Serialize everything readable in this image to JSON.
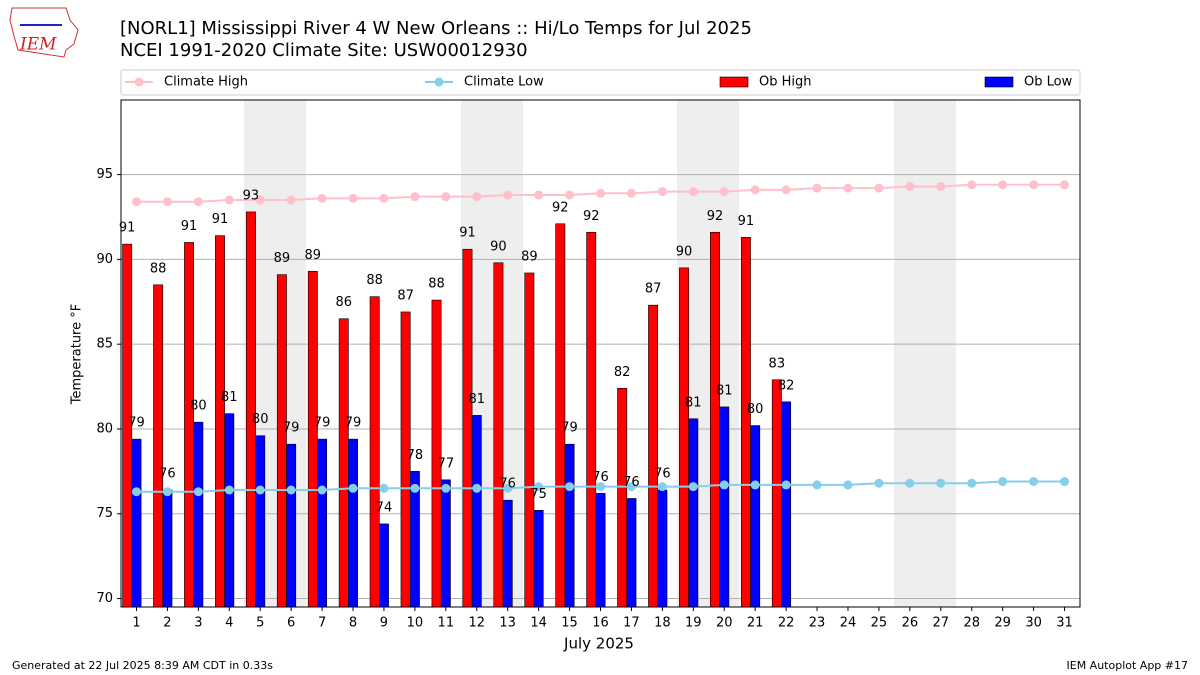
{
  "chart_data": {
    "type": "bar",
    "title": "[NORL1] Mississippi River 4 W New Orleans :: Hi/Lo Temps for Jul 2025",
    "subtitle": "NCEI 1991-2020 Climate Site: USW00012930",
    "logo_text": "IEM",
    "x_label": "July 2025",
    "y_label": "Temperature °F",
    "footer_left": "Generated at 22 Jul 2025 8:39 AM CDT in 0.33s",
    "footer_right": "IEM Autoplot App #17",
    "x": [
      1,
      2,
      3,
      4,
      5,
      6,
      7,
      8,
      9,
      10,
      11,
      12,
      13,
      14,
      15,
      16,
      17,
      18,
      19,
      20,
      21,
      22,
      23,
      24,
      25,
      26,
      27,
      28,
      29,
      30,
      31
    ],
    "xlim": [
      0.5,
      31.5
    ],
    "ylim": [
      69.5,
      99.4
    ],
    "yticks": [
      70,
      75,
      80,
      85,
      90,
      95
    ],
    "grid": true,
    "legend": "top",
    "series": [
      {
        "name": "Climate High",
        "type": "line",
        "color": "#ffc0cb",
        "values": [
          93.4,
          93.4,
          93.4,
          93.5,
          93.5,
          93.5,
          93.6,
          93.6,
          93.6,
          93.7,
          93.7,
          93.7,
          93.8,
          93.8,
          93.8,
          93.9,
          93.9,
          94.0,
          94.0,
          94.0,
          94.1,
          94.1,
          94.2,
          94.2,
          94.2,
          94.3,
          94.3,
          94.4,
          94.4,
          94.4,
          94.4
        ]
      },
      {
        "name": "Climate Low",
        "type": "line",
        "color": "#87ceeb",
        "values": [
          76.3,
          76.3,
          76.3,
          76.4,
          76.4,
          76.4,
          76.4,
          76.5,
          76.5,
          76.5,
          76.5,
          76.5,
          76.5,
          76.6,
          76.6,
          76.6,
          76.6,
          76.6,
          76.6,
          76.7,
          76.7,
          76.7,
          76.7,
          76.7,
          76.8,
          76.8,
          76.8,
          76.8,
          76.9,
          76.9,
          76.9
        ]
      },
      {
        "name": "Ob High",
        "type": "bar",
        "color": "#ff0000",
        "values": [
          90.9,
          88.5,
          91.0,
          91.4,
          92.8,
          89.1,
          89.3,
          86.5,
          87.8,
          86.9,
          87.6,
          90.6,
          89.8,
          89.2,
          92.1,
          91.6,
          82.4,
          87.3,
          89.5,
          91.6,
          91.3,
          82.9,
          null,
          null,
          null,
          null,
          null,
          null,
          null,
          null,
          null
        ],
        "value_labels": [
          "91",
          "88",
          "91",
          "91",
          "93",
          "89",
          "89",
          "86",
          "88",
          "87",
          "88",
          "91",
          "90",
          "89",
          "92",
          "92",
          "82",
          "87",
          "90",
          "92",
          "91",
          "83",
          null,
          null,
          null,
          null,
          null,
          null,
          null,
          null,
          null
        ]
      },
      {
        "name": "Ob Low",
        "type": "bar",
        "color": "#0000ff",
        "values": [
          79.4,
          76.4,
          80.4,
          80.9,
          79.6,
          79.1,
          79.4,
          79.4,
          74.4,
          77.5,
          77.0,
          80.8,
          75.8,
          75.2,
          79.1,
          76.2,
          75.9,
          76.4,
          80.6,
          81.3,
          80.2,
          81.6,
          null,
          null,
          null,
          null,
          null,
          null,
          null,
          null,
          null
        ],
        "value_labels": [
          "79",
          "76",
          "80",
          "81",
          "80",
          "79",
          "79",
          "79",
          "74",
          "78",
          "77",
          "81",
          "76",
          "75",
          "79",
          "76",
          "76",
          "76",
          "81",
          "81",
          "80",
          "82",
          null,
          null,
          null,
          null,
          null,
          null,
          null,
          null,
          null
        ]
      }
    ]
  }
}
